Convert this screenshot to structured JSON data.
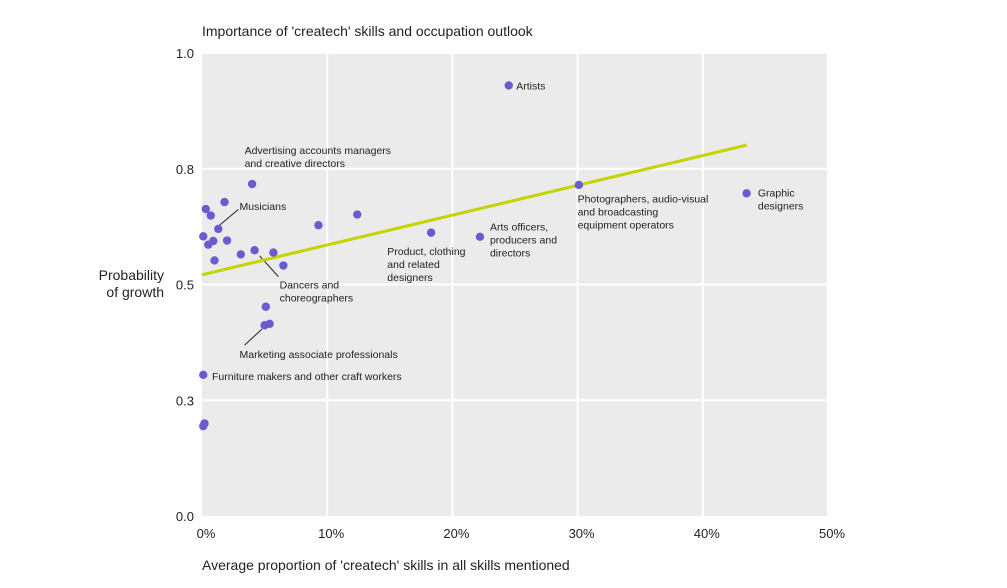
{
  "chart_data": {
    "type": "scatter",
    "title": "Importance of 'createch' skills and occupation outlook",
    "xlabel": "Average proportion of 'createch' skills in all skills mentioned",
    "ylabel": "Probability of growth",
    "xlim": [
      0,
      50
    ],
    "ylim": [
      0,
      1
    ],
    "grid": true,
    "x_ticks": [
      {
        "value": 0,
        "label": "0%"
      },
      {
        "value": 10,
        "label": "10%"
      },
      {
        "value": 20,
        "label": "20%"
      },
      {
        "value": 30,
        "label": "30%"
      },
      {
        "value": 40,
        "label": "40%"
      },
      {
        "value": 50,
        "label": "50%"
      }
    ],
    "y_ticks": [
      {
        "value": 0,
        "label": "0.0"
      },
      {
        "value": 0.25,
        "label": "0.3"
      },
      {
        "value": 0.5,
        "label": "0.5"
      },
      {
        "value": 0.75,
        "label": "0.8"
      },
      {
        "value": 1,
        "label": "1.0"
      }
    ],
    "points": [
      {
        "x": 24.5,
        "y": 0.93
      },
      {
        "x": 30.1,
        "y": 0.715
      },
      {
        "x": 43.5,
        "y": 0.697
      },
      {
        "x": 22.2,
        "y": 0.603
      },
      {
        "x": 18.3,
        "y": 0.612
      },
      {
        "x": 12.4,
        "y": 0.651
      },
      {
        "x": 9.3,
        "y": 0.628
      },
      {
        "x": 4.0,
        "y": 0.717
      },
      {
        "x": 1.8,
        "y": 0.678
      },
      {
        "x": 0.3,
        "y": 0.663
      },
      {
        "x": 0.7,
        "y": 0.649
      },
      {
        "x": 1.3,
        "y": 0.62
      },
      {
        "x": 0.1,
        "y": 0.604
      },
      {
        "x": 0.9,
        "y": 0.594
      },
      {
        "x": 0.5,
        "y": 0.586
      },
      {
        "x": 2.0,
        "y": 0.595
      },
      {
        "x": 4.2,
        "y": 0.574
      },
      {
        "x": 5.7,
        "y": 0.569
      },
      {
        "x": 3.1,
        "y": 0.565
      },
      {
        "x": 1.0,
        "y": 0.552
      },
      {
        "x": 6.5,
        "y": 0.541
      },
      {
        "x": 5.1,
        "y": 0.452
      },
      {
        "x": 5.4,
        "y": 0.415
      },
      {
        "x": 5.0,
        "y": 0.412
      },
      {
        "x": 0.1,
        "y": 0.305
      },
      {
        "x": 0.2,
        "y": 0.2
      },
      {
        "x": 0.1,
        "y": 0.194
      }
    ],
    "trendline": {
      "x": [
        0,
        43.5
      ],
      "y": [
        0.521,
        0.801
      ],
      "color": "#c5d400"
    },
    "point_color": "#6a5ccf",
    "annotations": [
      {
        "lines": [
          "Artists"
        ],
        "x": 25.1,
        "y": 0.93
      },
      {
        "lines": [
          "Advertising accounts managers",
          "and creative directors"
        ],
        "x": 3.4,
        "y": 0.79
      },
      {
        "lines": [
          "Musicians"
        ],
        "x": 3.0,
        "y": 0.67
      },
      {
        "lines": [
          "Dancers and",
          "choreographers"
        ],
        "x": 6.2,
        "y": 0.5
      },
      {
        "lines": [
          "Marketing associate professionals"
        ],
        "x": 3.0,
        "y": 0.35
      },
      {
        "lines": [
          "Furniture makers and other craft workers"
        ],
        "x": 0.8,
        "y": 0.302
      },
      {
        "lines": [
          "Product, clothing",
          "and related",
          "designers"
        ],
        "x": 14.8,
        "y": 0.572
      },
      {
        "lines": [
          "Arts officers,",
          "producers and",
          "directors"
        ],
        "x": 23.0,
        "y": 0.625
      },
      {
        "lines": [
          "Photographers, audio-visual",
          "and broadcasting",
          "equipment operators"
        ],
        "x": 30.0,
        "y": 0.686
      },
      {
        "lines": [
          "Graphic",
          "designers"
        ],
        "x": 44.4,
        "y": 0.699
      }
    ],
    "leaders": [
      {
        "x1": 1.4,
        "y1": 0.628,
        "x2": 2.9,
        "y2": 0.662
      },
      {
        "x1": 4.6,
        "y1": 0.562,
        "x2": 6.1,
        "y2": 0.517
      },
      {
        "x1": 4.8,
        "y1": 0.404,
        "x2": 3.4,
        "y2": 0.369
      }
    ]
  }
}
